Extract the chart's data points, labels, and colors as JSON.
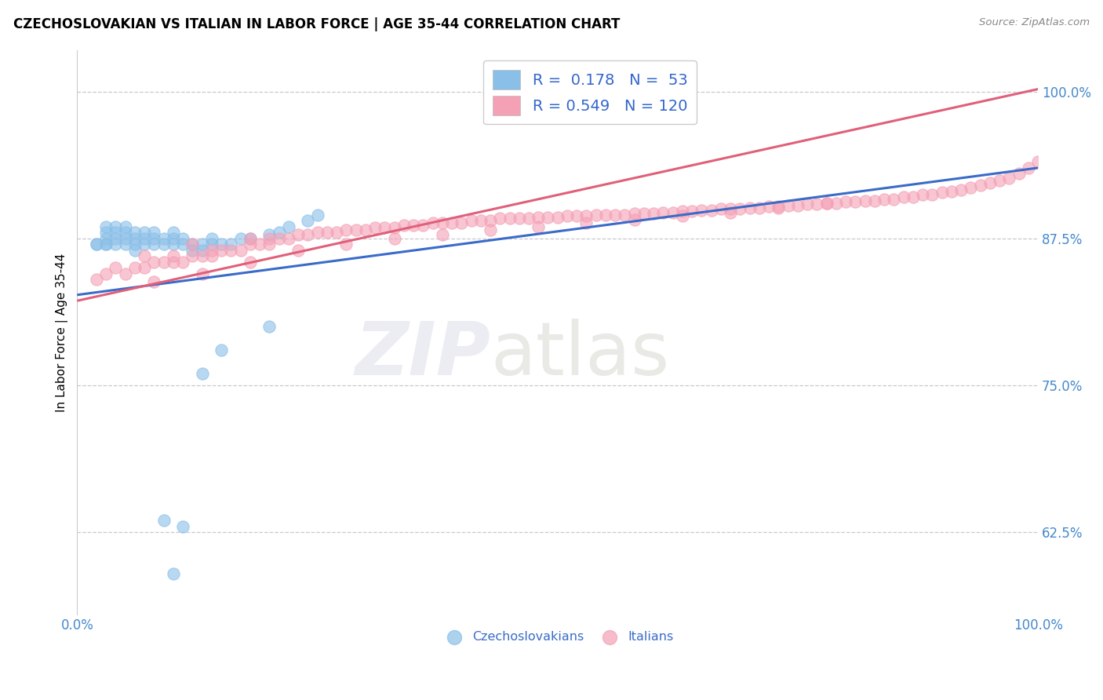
{
  "title": "CZECHOSLOVAKIAN VS ITALIAN IN LABOR FORCE | AGE 35-44 CORRELATION CHART",
  "source": "Source: ZipAtlas.com",
  "ylabel": "In Labor Force | Age 35-44",
  "xlim": [
    0.0,
    1.0
  ],
  "ylim": [
    0.555,
    1.035
  ],
  "yticks": [
    0.625,
    0.75,
    0.875,
    1.0
  ],
  "ytick_labels": [
    "62.5%",
    "75.0%",
    "87.5%",
    "100.0%"
  ],
  "xticks": [
    0.0,
    1.0
  ],
  "xtick_labels": [
    "0.0%",
    "100.0%"
  ],
  "r_czech": 0.178,
  "n_czech": 53,
  "r_italian": 0.549,
  "n_italian": 120,
  "color_czech": "#8abfe8",
  "color_italian": "#f4a0b5",
  "line_color_czech": "#3a6bc9",
  "line_color_italian": "#e0607a",
  "background_color": "#ffffff",
  "grid_color": "#c8c8d0",
  "czech_x": [
    0.02,
    0.02,
    0.03,
    0.03,
    0.03,
    0.03,
    0.03,
    0.04,
    0.04,
    0.04,
    0.04,
    0.05,
    0.05,
    0.05,
    0.05,
    0.06,
    0.06,
    0.06,
    0.06,
    0.07,
    0.07,
    0.07,
    0.08,
    0.08,
    0.08,
    0.09,
    0.09,
    0.1,
    0.1,
    0.1,
    0.11,
    0.11,
    0.12,
    0.12,
    0.13,
    0.13,
    0.14,
    0.14,
    0.15,
    0.16,
    0.17,
    0.18,
    0.2,
    0.21,
    0.22,
    0.24,
    0.25,
    0.13,
    0.15,
    0.2,
    0.09,
    0.11,
    0.1
  ],
  "czech_y": [
    0.87,
    0.87,
    0.87,
    0.87,
    0.875,
    0.88,
    0.885,
    0.87,
    0.875,
    0.88,
    0.885,
    0.87,
    0.875,
    0.88,
    0.885,
    0.865,
    0.87,
    0.875,
    0.88,
    0.87,
    0.875,
    0.88,
    0.87,
    0.875,
    0.88,
    0.87,
    0.875,
    0.87,
    0.875,
    0.88,
    0.87,
    0.875,
    0.865,
    0.87,
    0.865,
    0.87,
    0.87,
    0.875,
    0.87,
    0.87,
    0.875,
    0.875,
    0.878,
    0.88,
    0.885,
    0.89,
    0.895,
    0.76,
    0.78,
    0.8,
    0.635,
    0.63,
    0.59
  ],
  "italian_x": [
    0.02,
    0.03,
    0.04,
    0.05,
    0.06,
    0.07,
    0.07,
    0.08,
    0.09,
    0.1,
    0.1,
    0.11,
    0.12,
    0.12,
    0.13,
    0.14,
    0.14,
    0.15,
    0.16,
    0.17,
    0.18,
    0.18,
    0.19,
    0.2,
    0.2,
    0.21,
    0.22,
    0.23,
    0.24,
    0.25,
    0.26,
    0.27,
    0.28,
    0.29,
    0.3,
    0.31,
    0.32,
    0.33,
    0.34,
    0.35,
    0.36,
    0.37,
    0.38,
    0.39,
    0.4,
    0.41,
    0.42,
    0.43,
    0.44,
    0.45,
    0.46,
    0.47,
    0.48,
    0.49,
    0.5,
    0.51,
    0.52,
    0.53,
    0.54,
    0.55,
    0.56,
    0.57,
    0.58,
    0.59,
    0.6,
    0.61,
    0.62,
    0.63,
    0.64,
    0.65,
    0.66,
    0.67,
    0.68,
    0.69,
    0.7,
    0.71,
    0.72,
    0.73,
    0.74,
    0.75,
    0.76,
    0.77,
    0.78,
    0.79,
    0.8,
    0.81,
    0.82,
    0.83,
    0.84,
    0.85,
    0.86,
    0.87,
    0.88,
    0.89,
    0.9,
    0.91,
    0.92,
    0.93,
    0.94,
    0.95,
    0.96,
    0.97,
    0.98,
    0.99,
    1.0,
    0.08,
    0.13,
    0.18,
    0.23,
    0.28,
    0.33,
    0.38,
    0.43,
    0.48,
    0.53,
    0.58,
    0.63,
    0.68,
    0.73,
    0.78
  ],
  "italian_y": [
    0.84,
    0.845,
    0.85,
    0.845,
    0.85,
    0.85,
    0.86,
    0.855,
    0.855,
    0.855,
    0.86,
    0.855,
    0.86,
    0.87,
    0.86,
    0.86,
    0.865,
    0.865,
    0.865,
    0.865,
    0.87,
    0.875,
    0.87,
    0.87,
    0.875,
    0.875,
    0.875,
    0.878,
    0.878,
    0.88,
    0.88,
    0.88,
    0.882,
    0.882,
    0.882,
    0.884,
    0.884,
    0.884,
    0.886,
    0.886,
    0.886,
    0.888,
    0.888,
    0.888,
    0.888,
    0.89,
    0.89,
    0.89,
    0.892,
    0.892,
    0.892,
    0.892,
    0.893,
    0.893,
    0.893,
    0.894,
    0.894,
    0.894,
    0.895,
    0.895,
    0.895,
    0.895,
    0.896,
    0.896,
    0.896,
    0.897,
    0.897,
    0.898,
    0.898,
    0.899,
    0.899,
    0.9,
    0.9,
    0.9,
    0.901,
    0.901,
    0.902,
    0.902,
    0.903,
    0.903,
    0.904,
    0.904,
    0.905,
    0.905,
    0.906,
    0.906,
    0.907,
    0.907,
    0.908,
    0.908,
    0.91,
    0.91,
    0.912,
    0.912,
    0.914,
    0.915,
    0.916,
    0.918,
    0.92,
    0.922,
    0.924,
    0.926,
    0.93,
    0.935,
    0.94,
    0.838,
    0.845,
    0.855,
    0.865,
    0.87,
    0.875,
    0.878,
    0.882,
    0.885,
    0.888,
    0.891,
    0.894,
    0.897,
    0.901,
    0.905
  ],
  "line_czech_x0": 0.0,
  "line_czech_x1": 1.0,
  "line_czech_y0": 0.827,
  "line_czech_y1": 0.935,
  "line_italian_x0": 0.0,
  "line_italian_x1": 1.0,
  "line_italian_y0": 0.822,
  "line_italian_y1": 1.002
}
